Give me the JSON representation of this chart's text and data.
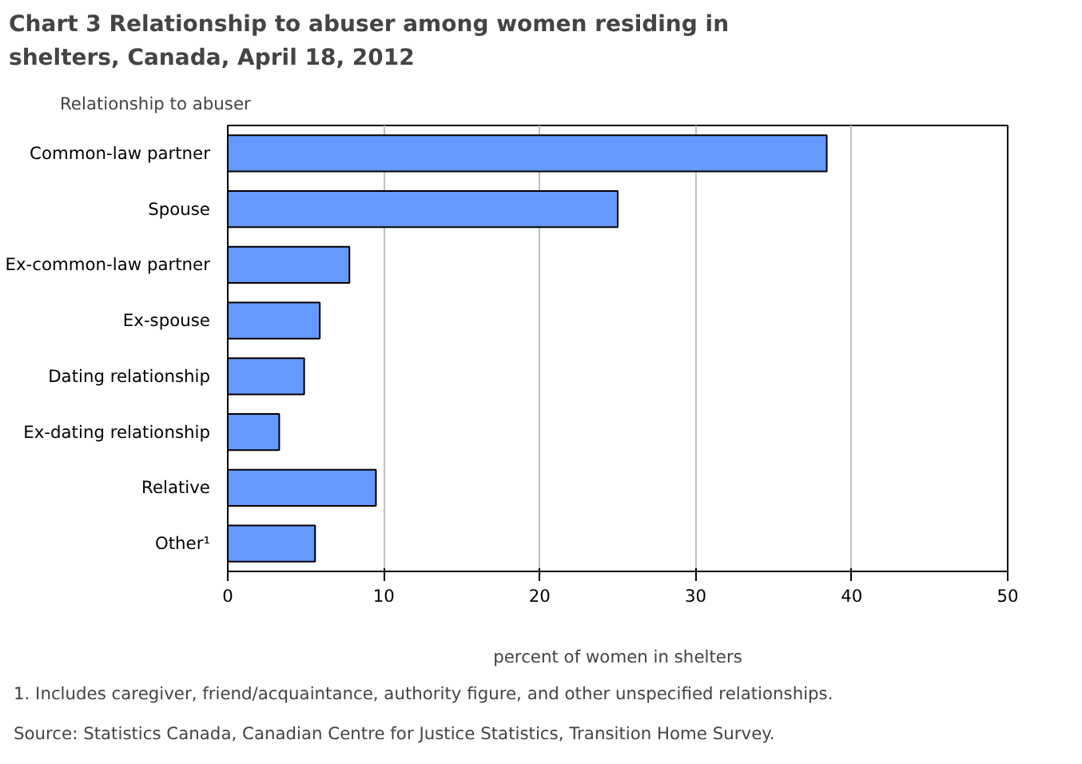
{
  "chart_data": {
    "type": "bar",
    "orientation": "horizontal",
    "title": "Chart 3 Relationship to abuser among women residing in shelters, Canada, April 18, 2012",
    "ylabel": "Relationship to abuser",
    "xlabel": "percent of women in shelters",
    "categories": [
      "Common-law partner",
      "Spouse",
      "Ex-common-law partner",
      "Ex-spouse",
      "Dating relationship",
      "Ex-dating relationship",
      "Relative",
      "Other¹"
    ],
    "values": [
      38.4,
      25.0,
      7.8,
      5.9,
      4.9,
      3.3,
      9.5,
      5.6
    ],
    "color": "#6699ff",
    "xlim": [
      0,
      50
    ],
    "xticks": [
      0,
      10,
      20,
      30,
      40,
      50
    ],
    "grid": "x",
    "annotations": [
      "1. Includes caregiver, friend/acquaintance, authority figure, and other unspecified relationships.",
      "Source: Statistics Canada, Canadian Centre for Justice Statistics, Transition Home Survey."
    ]
  }
}
